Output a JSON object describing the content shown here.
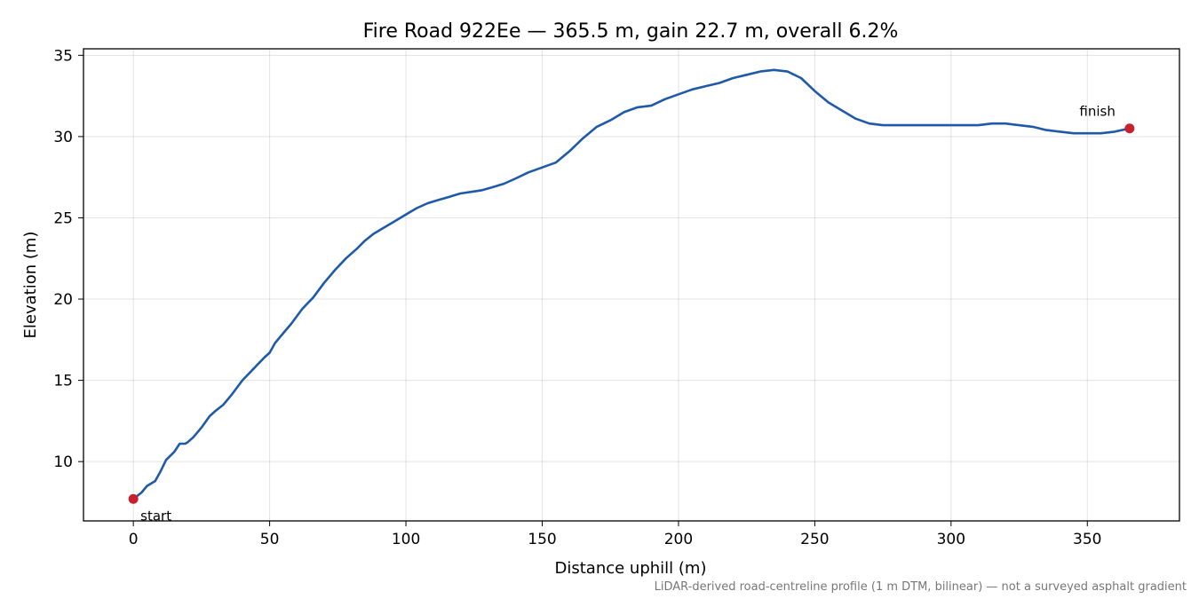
{
  "chart_data": {
    "type": "line",
    "title": "Fire Road 922Ee — 365.5 m, gain 22.7 m, overall 6.2%",
    "xlabel": "Distance uphill (m)",
    "ylabel": "Elevation (m)",
    "xlim": [
      -18.3,
      383.8
    ],
    "ylim": [
      6.35,
      35.4
    ],
    "xticks": [
      0,
      50,
      100,
      150,
      200,
      250,
      300,
      350
    ],
    "yticks": [
      10,
      15,
      20,
      25,
      30,
      35
    ],
    "grid": true,
    "line_color": "#1f5aaa",
    "marker_color": "#c8202c",
    "series": [
      {
        "x": [
          0,
          3,
          5,
          8,
          10,
          12,
          15,
          17,
          19,
          20,
          22,
          25,
          28,
          30,
          33,
          36,
          40,
          44,
          48,
          50,
          52,
          55,
          58,
          62,
          66,
          70,
          74,
          78,
          80,
          82,
          85,
          88,
          92,
          96,
          100,
          104,
          108,
          112,
          116,
          120,
          124,
          128,
          132,
          136,
          140,
          145,
          150,
          155,
          160,
          165,
          170,
          175,
          180,
          185,
          190,
          195,
          200,
          205,
          210,
          215,
          220,
          225,
          230,
          235,
          240,
          245,
          250,
          255,
          260,
          265,
          270,
          275,
          280,
          290,
          300,
          305,
          310,
          315,
          320,
          325,
          330,
          335,
          340,
          345,
          350,
          355,
          360,
          365.5
        ],
        "y": [
          7.7,
          8.1,
          8.5,
          8.8,
          9.4,
          10.1,
          10.6,
          11.1,
          11.1,
          11.2,
          11.5,
          12.1,
          12.8,
          13.1,
          13.5,
          14.1,
          15.0,
          15.7,
          16.4,
          16.7,
          17.3,
          17.9,
          18.5,
          19.4,
          20.1,
          21.0,
          21.8,
          22.5,
          22.8,
          23.1,
          23.6,
          24.0,
          24.4,
          24.8,
          25.2,
          25.6,
          25.9,
          26.1,
          26.3,
          26.5,
          26.6,
          26.7,
          26.9,
          27.1,
          27.4,
          27.8,
          28.1,
          28.4,
          29.1,
          29.9,
          30.6,
          31.0,
          31.5,
          31.8,
          31.9,
          32.3,
          32.6,
          32.9,
          33.1,
          33.3,
          33.6,
          33.8,
          34.0,
          34.1,
          34.0,
          33.6,
          32.8,
          32.1,
          31.6,
          31.1,
          30.8,
          30.7,
          30.7,
          30.7,
          30.7,
          30.7,
          30.7,
          30.8,
          30.8,
          30.7,
          30.6,
          30.4,
          30.3,
          30.2,
          30.2,
          30.2,
          30.3,
          30.5
        ]
      }
    ],
    "annotations": [
      {
        "text": "start",
        "x": 0,
        "y": 7.7
      },
      {
        "text": "finish",
        "x": 365.5,
        "y": 30.5
      }
    ],
    "footnote": "LiDAR-derived road-centreline profile (1 m DTM, bilinear) — not a surveyed asphalt gradient"
  }
}
